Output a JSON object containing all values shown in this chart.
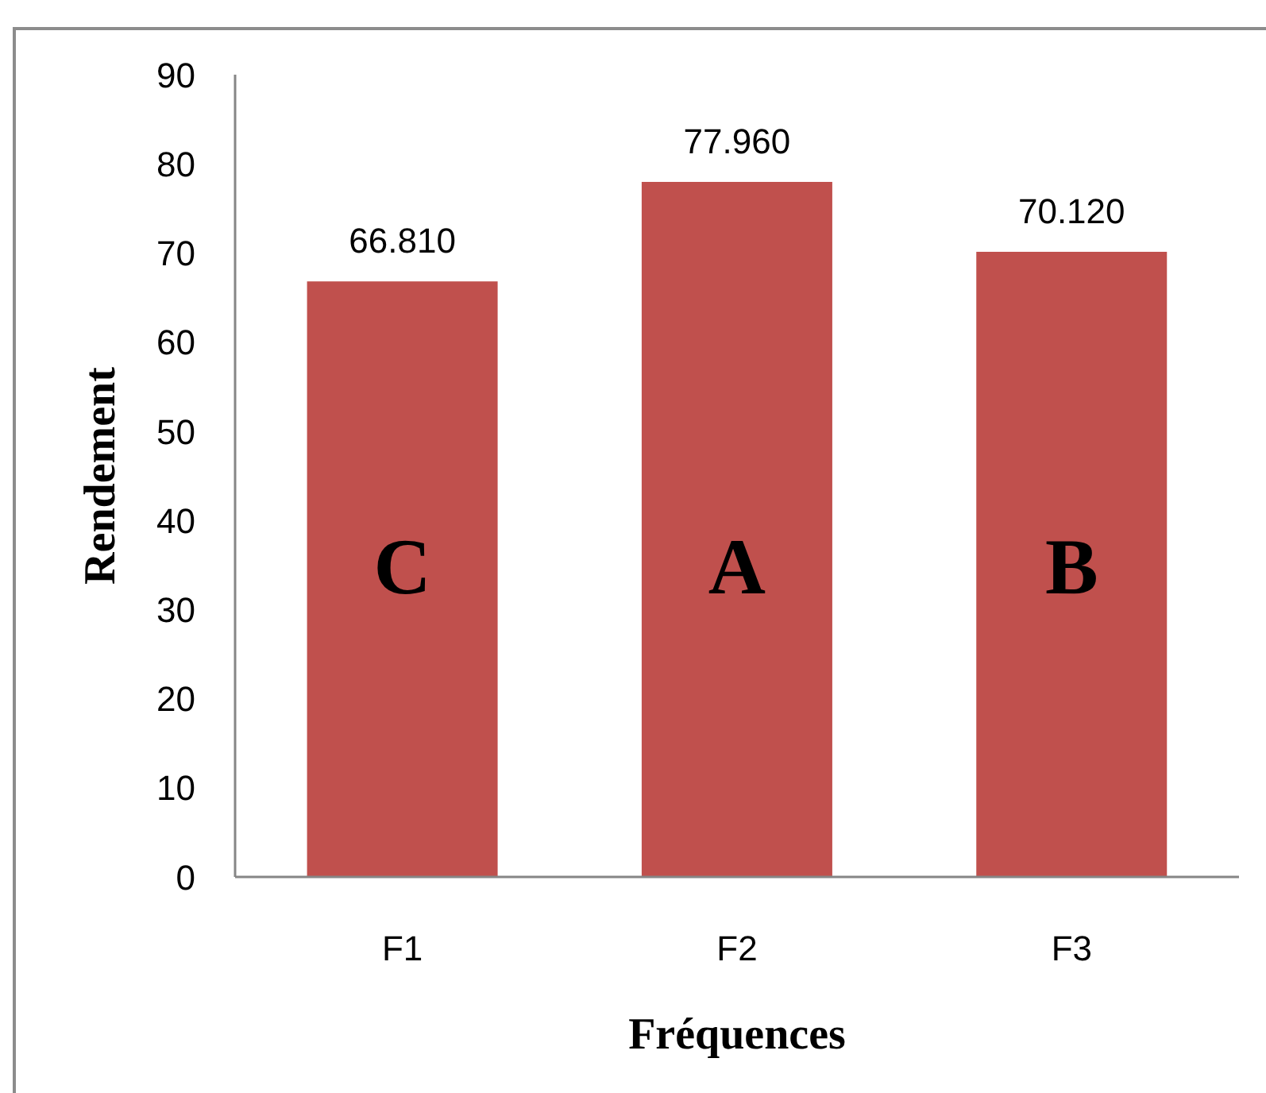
{
  "chart_data": {
    "type": "bar",
    "xlabel": "Fréquences",
    "ylabel": "Rendement",
    "categories": [
      "F1",
      "F2",
      "F3"
    ],
    "values": [
      66.81,
      77.96,
      70.12
    ],
    "value_labels": [
      "66.810",
      "77.960",
      "70.120"
    ],
    "color": "#c0504d",
    "ylim": [
      0,
      90
    ],
    "yticks": [
      0,
      10,
      20,
      30,
      40,
      50,
      60,
      70,
      80,
      90
    ],
    "annotations": [
      "C",
      "A",
      "B"
    ]
  }
}
